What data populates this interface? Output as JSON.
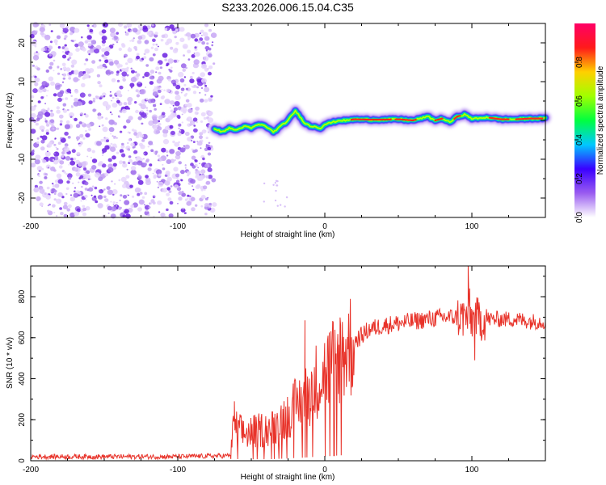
{
  "title": "S233.2026.006.15.04.C35",
  "colors": {
    "snr_line": "#e8332a",
    "axis": "#000000",
    "noise_dot": "#7b2ee6"
  },
  "chart_data": [
    {
      "type": "heatmap",
      "name": "frequency-ridge",
      "xlabel": "Height of straight line (km)",
      "ylabel": "Frequency (Hz)",
      "xlim": [
        -200,
        150
      ],
      "ylim": [
        -25,
        25
      ],
      "xticks": [
        "-200",
        "-100",
        "0",
        "100"
      ],
      "xtick_values": [
        -200,
        -100,
        0,
        100
      ],
      "yticks": [
        "-20",
        "-10",
        "0",
        "10",
        "20"
      ],
      "ytick_values": [
        -20,
        -10,
        0,
        10,
        20
      ],
      "noise_region_x": [
        -200,
        -75
      ],
      "ridge": {
        "x": [
          -75,
          -70,
          -65,
          -60,
          -55,
          -50,
          -45,
          -40,
          -35,
          -30,
          -25,
          -22,
          -20,
          -17,
          -14,
          -10,
          -7,
          -3,
          0,
          5,
          10,
          15,
          20,
          30,
          40,
          50,
          60,
          65,
          70,
          75,
          80,
          85,
          90,
          95,
          100,
          105,
          110,
          120,
          130,
          140,
          150
        ],
        "y": [
          -2,
          -3,
          -2,
          -2.5,
          -1.5,
          -2,
          -1,
          -1.5,
          -3,
          -1.5,
          0,
          1.5,
          2.5,
          1,
          -0.5,
          -1.5,
          -1.5,
          -2,
          -1,
          -0.5,
          0,
          0,
          0.3,
          0.2,
          0.2,
          0.3,
          0,
          0.5,
          1,
          0,
          0.5,
          -0.5,
          1,
          1.5,
          0.5,
          0.5,
          0.8,
          0.3,
          0.3,
          0.5,
          0.5
        ]
      }
    },
    {
      "type": "line",
      "name": "snr",
      "xlabel": "Height of straight line (km)",
      "ylabel": "SNR (10 * v/v)",
      "xlim": [
        -200,
        150
      ],
      "ylim": [
        0,
        950
      ],
      "xticks": [
        "-200",
        "-100",
        "0",
        "100"
      ],
      "xtick_values": [
        -200,
        -100,
        0,
        100
      ],
      "yticks": [
        "0",
        "200",
        "400",
        "600",
        "800"
      ],
      "ytick_values": [
        0,
        200,
        400,
        600,
        800
      ],
      "envelope": {
        "x": [
          -200,
          -100,
          -64,
          -62,
          -55,
          -45,
          -35,
          -25,
          -15,
          -10,
          -5,
          0,
          10,
          20,
          30,
          40,
          50,
          60,
          70,
          80,
          90,
          95,
          98,
          100,
          105,
          110,
          120,
          130,
          140,
          150
        ],
        "y": [
          20,
          20,
          25,
          170,
          130,
          150,
          160,
          230,
          300,
          340,
          400,
          430,
          520,
          580,
          640,
          660,
          670,
          680,
          690,
          700,
          700,
          700,
          700,
          690,
          690,
          690,
          690,
          690,
          680,
          680
        ]
      },
      "spikes": [
        {
          "x": -61.5,
          "y": 290
        },
        {
          "x": -13.5,
          "y": 685
        },
        {
          "x": 97.5,
          "y": 950
        },
        {
          "x": 98.5,
          "y": 840
        },
        {
          "x": 102,
          "y": 490
        }
      ]
    }
  ],
  "colorbar": {
    "label": "Normalized spectral amplitude",
    "range": [
      0,
      1
    ],
    "ticks": [
      "0.0",
      "0.2",
      "0.4",
      "0.6",
      "0.8"
    ],
    "tick_values": [
      0,
      0.2,
      0.4,
      0.6,
      0.8
    ],
    "stops": [
      "#ffffff",
      "#9a5cf0",
      "#3a00ff",
      "#00c8ff",
      "#00ff40",
      "#a0ff00",
      "#ffd000",
      "#ff1a1a",
      "#ff0066"
    ]
  }
}
